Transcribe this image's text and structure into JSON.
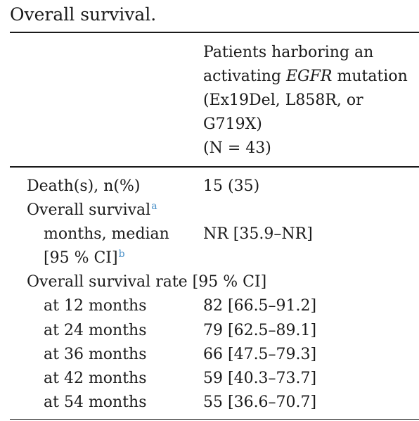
{
  "table": {
    "caption": "Overall survival.",
    "header": {
      "lines": [
        "Patients harboring an",
        "activating",
        "EGFR",
        "mutation",
        "(Ex19Del, L858R, or",
        "G719X)",
        "(N = 43)"
      ]
    },
    "rows": {
      "deaths": {
        "label": "Death(s), n(%)",
        "value": "15 (35)"
      },
      "os": {
        "label": "Overall survival",
        "note": "a"
      },
      "median": {
        "label_line1": "months, median",
        "label_line2": "[95 % CI]",
        "note": "b",
        "value": "NR [35.9–NR]"
      },
      "rate": {
        "label": "Overall survival rate [95 % CI]"
      },
      "m12": {
        "label": "at 12 months",
        "value": "82 [66.5–91.2]"
      },
      "m24": {
        "label": "at 24 months",
        "value": "79 [62.5–89.1]"
      },
      "m36": {
        "label": "at 36 months",
        "value": "66 [47.5–79.3]"
      },
      "m42": {
        "label": "at 42 months",
        "value": "59 [40.3–73.7]"
      },
      "m54": {
        "label": "at 54 months",
        "value": "55 [36.6–70.7]"
      }
    }
  }
}
